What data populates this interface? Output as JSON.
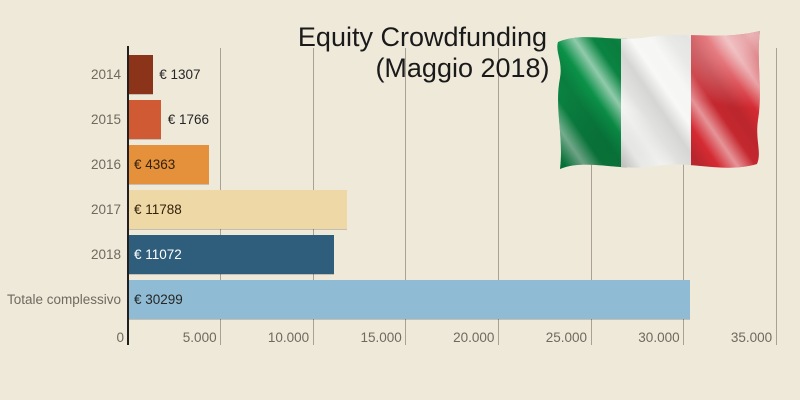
{
  "title": {
    "line1": "Equity Crowdfunding",
    "line2": "(Maggio 2018)"
  },
  "flag": {
    "name": "italy-flag",
    "green": "#0b9148",
    "white": "#f8f8f6",
    "red": "#d52b33"
  },
  "colors": {
    "background": "#efe9da",
    "grid": "#a9a193",
    "axis": "#21201d",
    "category_text": "#6f6a5e",
    "title_text": "#1a1a1a"
  },
  "chart_data": {
    "type": "bar",
    "orientation": "horizontal",
    "title": "Equity Crowdfunding (Maggio 2018)",
    "categories": [
      "2014",
      "2015",
      "2016",
      "2017",
      "2018",
      "Totale complessivo"
    ],
    "values": [
      1307,
      1766,
      4363,
      11788,
      11072,
      30299
    ],
    "value_labels": [
      "€ 1307",
      "€ 1766",
      "€ 4363",
      "€ 11788",
      "€ 11072",
      "€ 30299"
    ],
    "bar_colors": [
      "#8c341a",
      "#d05a33",
      "#e5913b",
      "#eed8a6",
      "#2f5e7c",
      "#8fbcd4"
    ],
    "value_text_colors": [
      "#262626",
      "#262626",
      "#33210a",
      "#33210a",
      "#ffffff",
      "#262626"
    ],
    "x_ticks": [
      "0",
      "5.000",
      "10.000",
      "15.000",
      "20.000",
      "25.000",
      "30.000",
      "35.000"
    ],
    "x_tick_values": [
      0,
      5000,
      10000,
      15000,
      20000,
      25000,
      30000,
      35000
    ],
    "xlim": [
      0,
      35000
    ],
    "grid": true,
    "legend": "none"
  }
}
